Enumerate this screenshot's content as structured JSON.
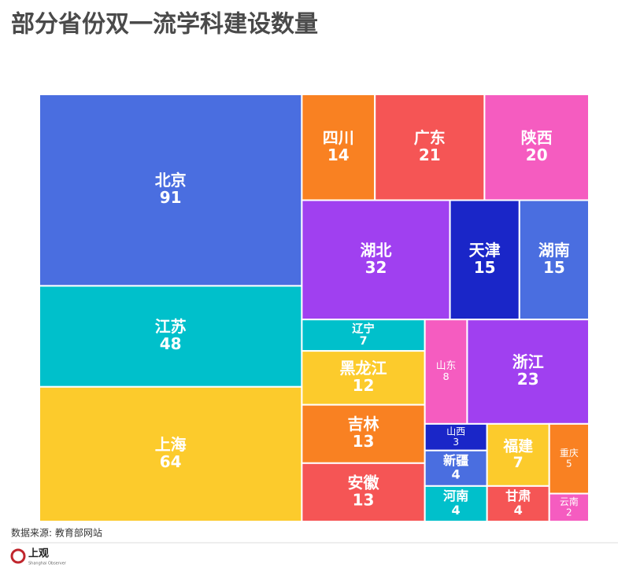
{
  "chart_data": {
    "type": "treemap",
    "title": "部分省份双一流学科建设数量",
    "categories": [
      "北京",
      "江苏",
      "上海",
      "四川",
      "广东",
      "陕西",
      "湖北",
      "天津",
      "湖南",
      "辽宁",
      "黑龙江",
      "吉林",
      "安徽",
      "山东",
      "浙江",
      "山西",
      "新疆",
      "河南",
      "福建",
      "甘肃",
      "重庆",
      "云南"
    ],
    "values": [
      91,
      48,
      64,
      14,
      21,
      20,
      32,
      15,
      15,
      7,
      12,
      13,
      13,
      8,
      23,
      3,
      4,
      4,
      7,
      4,
      5,
      2
    ],
    "colors": [
      "#4a6ee0",
      "#00c0cb",
      "#fccb2c",
      "#f98122",
      "#f55555",
      "#f55cc0",
      "#a040f0",
      "#1a26c8",
      "#4a6ee0",
      "#00c0cb",
      "#fccb2c",
      "#f98122",
      "#f55555",
      "#f55cc0",
      "#a040f0",
      "#1a26c8",
      "#4a6ee0",
      "#00c0cb",
      "#fccb2c",
      "#f55555",
      "#f98122",
      "#f55cc0"
    ],
    "source": "数据来源: 教育部网站"
  },
  "footer": {
    "logo": "上观",
    "logo_sub": "Shanghai Observer"
  }
}
